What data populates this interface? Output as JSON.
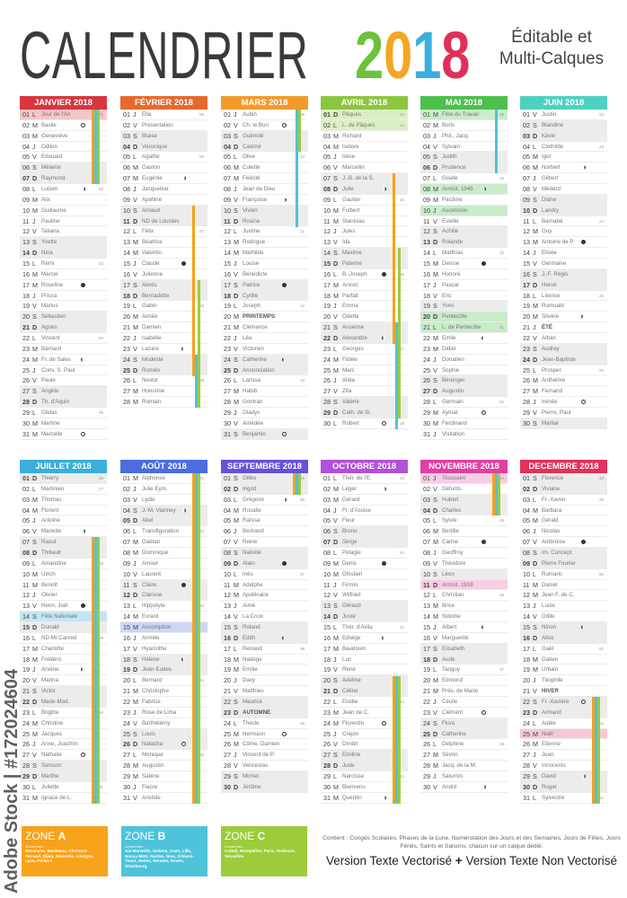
{
  "header": {
    "title": "CALENDRIER",
    "year_digits": [
      "2",
      "0",
      "1",
      "8"
    ],
    "year_colors": [
      "#6cc23a",
      "#f5a623",
      "#3aaee0",
      "#e0305a"
    ],
    "subtitle_1": "Éditable et",
    "subtitle_2": "Multi-Calques"
  },
  "zone_colors": {
    "A": "#f7a21b",
    "B": "#4fc3d9",
    "C": "#9ccc3a"
  },
  "months": [
    {
      "title": "JANVIER 2018",
      "color": "#d9363e",
      "hl": "#f5c6c8",
      "holidays": [
        1
      ],
      "weeks": {
        "1": "01",
        "8": "02",
        "15": "03",
        "22": "04",
        "29": "05"
      },
      "moons": {
        "2": "full",
        "8": "right",
        "17": "new",
        "24": "left",
        "31": "full"
      },
      "vacations": [
        {
          "zone": "A",
          "from": 1,
          "to": 7
        },
        {
          "zone": "B",
          "from": 1,
          "to": 7
        },
        {
          "zone": "C",
          "from": 1,
          "to": 7
        }
      ],
      "days": [
        "01|L|Jour de l'An",
        "02|M|Basile",
        "03|M|Geneviève",
        "04|J|Odilon",
        "05|V|Edouard",
        "06|S|Mélaine",
        "07|D|Raymond",
        "08|L|Lucien",
        "09|M|Alix",
        "10|M|Guillaume",
        "11|J|Pauline",
        "12|V|Tatiana",
        "13|S|Yvette",
        "14|D|Nina",
        "15|L|Rémi",
        "16|M|Marcel",
        "17|M|Roseline",
        "18|J|Prisca",
        "19|V|Marius",
        "20|S|Sébastien",
        "21|D|Agnès",
        "22|L|Vincent",
        "23|M|Barnard",
        "24|M|Fr. de Sales",
        "25|J|Conv. S. Paul",
        "26|V|Paule",
        "27|S|Angèle",
        "28|D|Th. d'Aquin",
        "29|L|Gildas",
        "30|M|Martine",
        "31|M|Marcelle"
      ]
    },
    {
      "title": "FÉVRIER 2018",
      "color": "#e8692e",
      "hl": "#f8d3c0",
      "holidays": [],
      "weeks": {
        "1": "05",
        "5": "06",
        "12": "07",
        "19": "08",
        "26": "09"
      },
      "moons": {
        "7": "right",
        "15": "new",
        "23": "left"
      },
      "vacations": [
        {
          "zone": "A",
          "from": 10,
          "to": 25
        },
        {
          "zone": "B",
          "from": 24,
          "to": 28
        },
        {
          "zone": "C",
          "from": 17,
          "to": 28
        }
      ],
      "days": [
        "01|J|Ella",
        "02|V|Présentation",
        "03|S|Blaise",
        "04|D|Véronique",
        "05|L|Agathe",
        "06|M|Gaston",
        "07|M|Eugénie",
        "08|J|Jacqueline",
        "09|V|Apolline",
        "10|S|Arnaud",
        "11|D|ND de Lourdes",
        "12|L|Félix",
        "13|M|Béatrice",
        "14|M|Valentin",
        "15|J|Claude",
        "16|V|Julienne",
        "17|S|Alexis",
        "18|D|Bernadette",
        "19|L|Gabin",
        "20|M|Aimée",
        "21|M|Damien",
        "22|J|Isabelle",
        "23|V|Lazare",
        "24|S|Modeste",
        "25|D|Roméo",
        "26|L|Nestor",
        "27|M|Honorine",
        "28|M|Romain"
      ]
    },
    {
      "title": "MARS 2018",
      "color": "#f39a2b",
      "hl": "#fde0bb",
      "holidays": [],
      "weeks": {
        "1": "09",
        "5": "10",
        "12": "11",
        "19": "12",
        "26": "13"
      },
      "moons": {
        "2": "full",
        "9": "right",
        "17": "new",
        "24": "left",
        "31": "full"
      },
      "vacations": [
        {
          "zone": "B",
          "from": 1,
          "to": 11
        },
        {
          "zone": "C",
          "from": 1,
          "to": 4
        }
      ],
      "days": [
        "01|J|Aubin",
        "02|V|Ch. le Bon",
        "03|S|Guénolé",
        "04|D|Casimir",
        "05|L|Olive",
        "06|M|Colette",
        "07|M|Félicité",
        "08|J|Jean de Dieu",
        "09|V|Françoise",
        "10|S|Vivien",
        "11|D|Rosine",
        "12|L|Justine",
        "13|M|Rodrigue",
        "14|M|Mathilde",
        "15|J|Louise",
        "16|V|Bénédicte",
        "17|S|Patrice",
        "18|D|Cyrille",
        "19|L|Joseph",
        "20|M|PRINTEMPS",
        "21|M|Clémence",
        "22|J|Léa",
        "23|V|Victorien",
        "24|S|Catherine",
        "25|D|Annonciation",
        "26|L|Larissa",
        "27|M|Habib",
        "28|M|Gontran",
        "29|J|Gladys",
        "30|V|Amédée",
        "31|S|Benjamin"
      ]
    },
    {
      "title": "AVRIL 2018",
      "color": "#8cc63f",
      "hl": "#dcefc4",
      "holidays": [
        1,
        2
      ],
      "weeks": {
        "1": "13",
        "2": "14",
        "9": "15",
        "16": "16",
        "23": "17",
        "30": "18"
      },
      "moons": {
        "8": "right",
        "16": "new",
        "22": "left",
        "30": "full"
      },
      "vacations": [
        {
          "zone": "A",
          "from": 7,
          "to": 22
        },
        {
          "zone": "B",
          "from": 21,
          "to": 30
        },
        {
          "zone": "C",
          "from": 14,
          "to": 29
        }
      ],
      "days": [
        "01|D|Pâques",
        "02|L|L. de Pâques",
        "03|M|Richard",
        "04|M|Isidore",
        "05|J|Irène",
        "06|V|Marcellin",
        "07|S|J.-B. de la S.",
        "08|D|Julie",
        "09|L|Gautier",
        "10|M|Fulbert",
        "11|M|Stanislas",
        "12|J|Jules",
        "13|V|Ida",
        "14|S|Maxime",
        "15|D|Paterne",
        "16|L|B.-Joseph",
        "17|M|Anicet",
        "18|M|Parfait",
        "19|J|Emma",
        "20|V|Odette",
        "21|S|Anselme",
        "22|D|Alexandre",
        "23|L|Georges",
        "24|M|Fidèle",
        "25|M|Marc",
        "26|J|Alida",
        "27|V|Zita",
        "28|S|Valérie",
        "29|D|Cath. de Si.",
        "30|L|Robert"
      ]
    },
    {
      "title": "MAI 2018",
      "color": "#4cbf4c",
      "hl": "#c9ecc9",
      "holidays": [
        1,
        8,
        10,
        20,
        21
      ],
      "weeks": {
        "1": "18",
        "7": "19",
        "14": "20",
        "21": "21",
        "28": "22"
      },
      "moons": {
        "8": "right",
        "15": "new",
        "22": "left",
        "29": "full"
      },
      "vacations": [
        {
          "zone": "B",
          "from": 1,
          "to": 6
        }
      ],
      "days": [
        "01|M|Fête du Travail",
        "02|M|Boris",
        "03|J|Phil., Jacq.",
        "04|V|Sylvain",
        "05|S|Judith",
        "06|D|Prudence",
        "07|L|Gisèle",
        "08|M|Armist. 1945",
        "09|M|Pacôme",
        "10|J|Ascension",
        "11|V|Estelle",
        "12|S|Achille",
        "13|D|Rolande",
        "14|L|Matthias",
        "15|M|Denise",
        "16|M|Honoré",
        "17|J|Pascal",
        "18|V|Eric",
        "19|S|Yves",
        "20|D|Pentecôte",
        "21|L|L. de Pentecôte",
        "22|M|Emile",
        "23|M|Didier",
        "24|J|Donatien",
        "25|V|Sophie",
        "26|S|Bérenger",
        "27|D|Augustin",
        "28|L|Germain",
        "29|M|Aymar",
        "30|M|Ferdinand",
        "31|J|Visitation"
      ]
    },
    {
      "title": "JUIN 2018",
      "color": "#4fd1c1",
      "hl": "#c8f0eb",
      "holidays": [],
      "weeks": {
        "1": "22",
        "4": "23",
        "11": "24",
        "18": "25",
        "25": "26"
      },
      "moons": {
        "6": "right",
        "13": "new",
        "20": "left",
        "28": "full"
      },
      "vacations": [],
      "days": [
        "01|V|Justin",
        "02|S|Blandine",
        "03|D|Kévin",
        "04|L|Clothilde",
        "05|M|Igor",
        "06|M|Norbert",
        "07|J|Gilbert",
        "08|V|Médard",
        "09|S|Diane",
        "10|D|Landry",
        "11|L|Barnabé",
        "12|M|Guy",
        "13|M|Antoine de P.",
        "14|J|Elisée",
        "15|V|Germaine",
        "16|S|J.-F. Régis",
        "17|D|Hervé",
        "18|L|Léonce",
        "19|M|Romuald",
        "20|M|Silvère",
        "21|J|ÉTÉ",
        "22|V|Alban",
        "23|S|Audrey",
        "24|D|Jean-Baptiste",
        "25|L|Prosper",
        "26|M|Anthelme",
        "27|M|Fernand",
        "28|J|Irénée",
        "29|V|Pierre, Paul",
        "30|S|Martial"
      ]
    },
    {
      "title": "JUILLET 2018",
      "color": "#3aafd9",
      "hl": "#c4e6f3",
      "holidays": [
        14
      ],
      "weeks": {
        "1": "26",
        "2": "27",
        "9": "28",
        "16": "29",
        "23": "30",
        "30": "31"
      },
      "moons": {
        "6": "right",
        "13": "new",
        "19": "left",
        "27": "full"
      },
      "vacations": [
        {
          "zone": "A",
          "from": 7,
          "to": 31
        },
        {
          "zone": "B",
          "from": 7,
          "to": 31
        },
        {
          "zone": "C",
          "from": 7,
          "to": 31
        }
      ],
      "days": [
        "01|D|Thierry",
        "02|L|Martinien",
        "03|M|Thomas",
        "04|M|Florent",
        "05|J|Antoine",
        "06|V|Mariette",
        "07|S|Raoul",
        "08|D|Thibault",
        "09|L|Amandine",
        "10|M|Ulrich",
        "11|M|Benoît",
        "12|J|Olivier",
        "13|V|Henri, Joël",
        "14|S|Fête Nationale",
        "15|D|Donald",
        "16|L|ND Mt Carmel",
        "17|M|Charlotte",
        "18|M|Frédéric",
        "19|J|Arsène",
        "20|V|Marina",
        "21|S|Victor",
        "22|D|Marie-Mad.",
        "23|L|Brigitte",
        "24|M|Christine",
        "25|M|Jacques",
        "26|J|Anne, Joachim",
        "27|V|Nathalie",
        "28|S|Samson",
        "29|D|Marthe",
        "30|L|Juliette",
        "31|M|Ignace de L."
      ]
    },
    {
      "title": "AOÛT 2018",
      "color": "#4a6ee0",
      "hl": "#ccd6f6",
      "holidays": [
        15
      ],
      "weeks": {
        "1": "31",
        "6": "32",
        "13": "33",
        "20": "34",
        "27": "35"
      },
      "moons": {
        "4": "right",
        "11": "new",
        "18": "left",
        "26": "full"
      },
      "vacations": [
        {
          "zone": "A",
          "from": 1,
          "to": 31
        },
        {
          "zone": "B",
          "from": 1,
          "to": 31
        },
        {
          "zone": "C",
          "from": 1,
          "to": 31
        }
      ],
      "days": [
        "01|M|Alphonse",
        "02|J|Julie Eym.",
        "03|V|Lydie",
        "04|S|J.-M. Vianney",
        "05|D|Abel",
        "06|L|Transfiguration",
        "07|M|Gaëtan",
        "08|M|Dominique",
        "09|J|Amour",
        "10|V|Laurent",
        "11|S|Claire",
        "12|D|Clarisse",
        "13|L|Hippolyte",
        "14|M|Evrard",
        "15|M|Assomption",
        "16|J|Armèle",
        "17|V|Hyacinthe",
        "18|S|Hélène",
        "19|D|Jean-Eudes",
        "20|L|Bernard",
        "21|M|Christophe",
        "22|M|Fabrice",
        "23|J|Rose de Lima",
        "24|V|Barthélémy",
        "25|S|Louis",
        "26|D|Natacha",
        "27|L|Monique",
        "28|M|Augustin",
        "29|M|Sabine",
        "30|J|Fiacre",
        "31|V|Aristide"
      ]
    },
    {
      "title": "SEPTEMBRE 2018",
      "color": "#6a4fd9",
      "hl": "#d6cdf4",
      "holidays": [],
      "weeks": {
        "1": "35",
        "3": "36",
        "10": "37",
        "17": "38",
        "24": "39"
      },
      "moons": {
        "3": "right",
        "9": "new",
        "16": "left",
        "25": "full"
      },
      "vacations": [
        {
          "zone": "A",
          "from": 1,
          "to": 2
        },
        {
          "zone": "B",
          "from": 1,
          "to": 2
        },
        {
          "zone": "C",
          "from": 1,
          "to": 2
        }
      ],
      "days": [
        "01|S|Gilles",
        "02|D|Ingrid",
        "03|L|Grégoire",
        "04|M|Rosalie",
        "05|M|Raïssa",
        "06|J|Bertrand",
        "07|V|Reine",
        "08|S|Nativité",
        "09|D|Alain",
        "10|L|Inès",
        "11|M|Adelphe",
        "12|M|Apollinaire",
        "13|J|Aimé",
        "14|V|La Croix",
        "15|S|Roland",
        "16|D|Edith",
        "17|L|Renaud",
        "18|M|Nadège",
        "19|M|Emilie",
        "20|J|Davy",
        "21|V|Matthieu",
        "22|S|Maurice",
        "23|D|AUTOMNE",
        "24|L|Thècle",
        "25|M|Hermann",
        "26|M|Côme, Damien",
        "27|J|Vincent de P.",
        "28|V|Venceslas",
        "29|S|Michel",
        "30|D|Jérôme"
      ]
    },
    {
      "title": "OCTOBRE 2018",
      "color": "#b150d9",
      "hl": "#ebcdf4",
      "holidays": [],
      "weeks": {
        "1": "40",
        "8": "41",
        "15": "42",
        "22": "43",
        "29": "44"
      },
      "moons": {
        "2": "right",
        "9": "new",
        "16": "left",
        "24": "full",
        "31": "right"
      },
      "vacations": [
        {
          "zone": "A",
          "from": 20,
          "to": 31
        },
        {
          "zone": "B",
          "from": 20,
          "to": 31
        },
        {
          "zone": "C",
          "from": 20,
          "to": 31
        }
      ],
      "days": [
        "01|L|Thér. de l'E.",
        "02|M|Léger",
        "03|M|Gérard",
        "04|J|Fr. d'Assise",
        "05|V|Fleur",
        "06|S|Bruno",
        "07|D|Serge",
        "08|L|Pélagie",
        "09|M|Denis",
        "10|M|Ghislain",
        "11|J|Firmin",
        "12|V|Wilfried",
        "13|S|Géraud",
        "14|D|Juste",
        "15|L|Thér. d'Avila",
        "16|M|Edwige",
        "17|M|Baudouin",
        "18|J|Luc",
        "19|V|René",
        "20|S|Adeline",
        "21|D|Céline",
        "22|L|Elodie",
        "23|M|Jean de C.",
        "24|M|Florentin",
        "25|J|Crépin",
        "26|V|Dimitri",
        "27|S|Emiline",
        "28|D|Jude",
        "29|L|Narcisse",
        "30|M|Bienvenu",
        "31|M|Quentin"
      ]
    },
    {
      "title": "NOVEMBRE 2018",
      "color": "#e040a3",
      "hl": "#f8cde6",
      "holidays": [
        1,
        11
      ],
      "weeks": {
        "1": "44",
        "5": "45",
        "12": "46",
        "19": "47",
        "26": "48"
      },
      "moons": {
        "7": "new",
        "15": "left",
        "23": "full",
        "30": "right"
      },
      "vacations": [
        {
          "zone": "A",
          "from": 1,
          "to": 4
        },
        {
          "zone": "B",
          "from": 1,
          "to": 4
        },
        {
          "zone": "C",
          "from": 1,
          "to": 4
        }
      ],
      "days": [
        "01|J|Toussaint",
        "02|V|Défunts",
        "03|S|Hubert",
        "04|D|Charles",
        "05|L|Sylvie",
        "06|M|Bertille",
        "07|M|Carine",
        "08|J|Geoffroy",
        "09|V|Théodore",
        "10|S|Léon",
        "11|D|Armist. 1918",
        "12|L|Christian",
        "13|M|Brice",
        "14|M|Sidoine",
        "15|J|Albert",
        "16|V|Marguerite",
        "17|S|Elisabeth",
        "18|D|Aude",
        "19|L|Tanguy",
        "20|M|Edmond",
        "21|M|Prés. de Marie",
        "22|J|Cécile",
        "23|V|Clément",
        "24|S|Flora",
        "25|D|Catherine",
        "26|L|Delphine",
        "27|M|Sévrin",
        "28|M|Jacq. de la M.",
        "29|J|Saturnin",
        "30|V|André"
      ]
    },
    {
      "title": "DECEMBRE 2018",
      "color": "#e0325c",
      "hl": "#f6c8d3",
      "holidays": [
        25
      ],
      "weeks": {
        "1": "48",
        "3": "49",
        "10": "50",
        "17": "51",
        "24": "52",
        "31": "01"
      },
      "moons": {
        "7": "new",
        "15": "left",
        "22": "full",
        "29": "right"
      },
      "vacations": [
        {
          "zone": "A",
          "from": 22,
          "to": 31
        },
        {
          "zone": "B",
          "from": 22,
          "to": 31
        },
        {
          "zone": "C",
          "from": 22,
          "to": 31
        }
      ],
      "days": [
        "01|S|Florence",
        "02|D|Viviane",
        "03|L|Fr.-Xavier",
        "04|M|Barbara",
        "05|M|Gérald",
        "06|J|Nicolas",
        "07|V|Ambroise",
        "08|S|Im. Concept.",
        "09|D|Pierre Fourier",
        "10|L|Romaric",
        "11|M|Daniel",
        "12|M|Jean F. de C.",
        "13|J|Lucie",
        "14|V|Odile",
        "15|S|Ninon",
        "16|D|Alice",
        "17|L|Gaël",
        "18|M|Gatien",
        "19|M|Urbain",
        "20|J|Téophile",
        "21|V|HIVER",
        "22|S|Fr.-Xavière",
        "23|D|Armand",
        "24|L|Adèle",
        "25|M|Noël",
        "26|M|Etienne",
        "27|J|Jean",
        "28|V|Innocents",
        "29|S|David",
        "30|D|Roger",
        "31|L|Sylvestre"
      ]
    }
  ],
  "seasons": [
    "PRINTEMPS",
    "ÉTÉ",
    "AUTOMNE",
    "HIVER"
  ],
  "zones": [
    {
      "prefix": "ZONE ",
      "letter": "A",
      "label": "Académies :",
      "list": "Besançon, Bordeaux, Clermont-Ferrand, Dijon, Grenoble, Limoges, Lyon, Poitiers"
    },
    {
      "prefix": "ZONE ",
      "letter": "B",
      "label": "Académies :",
      "list": "Aix-Marseille, Amiens, Caen, Lille, Nancy-Metz, Nantes, Nice, Orléans-Tours, Reims, Rennes, Rouen, Strasbourg"
    },
    {
      "prefix": "ZONE ",
      "letter": "C",
      "label": "Académies :",
      "list": "Créteil, Montpellier, Paris, Toulouse, Versailles"
    }
  ],
  "footer": {
    "note": "Contient : Congés Scolaires, Phases de la Lune, Numérotation des Jours et des Semaines, Jours de Fêtes, Jours Fériés, Saints et Saisons, chacun sur un calque dédié.",
    "version_a": "Version Texte Vectorisé",
    "plus": "+",
    "version_b": "Version Texte Non Vectorisé"
  },
  "watermark": "Adobe Stock | #172024604"
}
